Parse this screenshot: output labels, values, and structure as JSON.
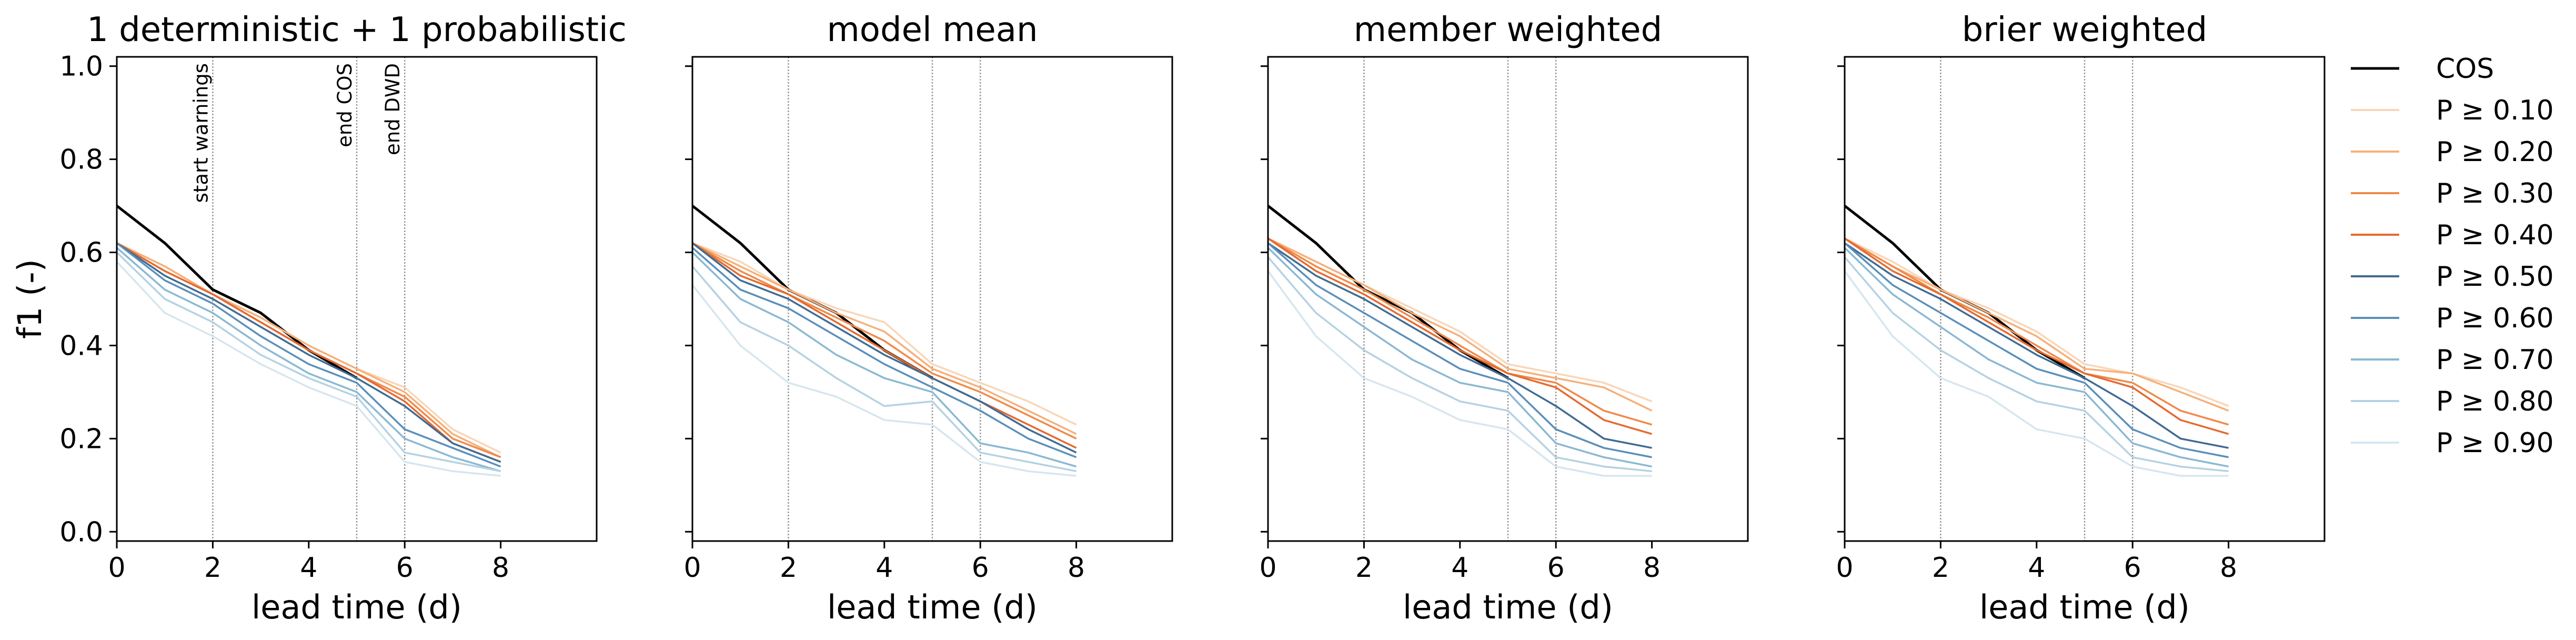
{
  "figure": {
    "ylabel": "f1 (-)",
    "xlabel": "lead time (d)",
    "xticks": [
      "0",
      "2",
      "4",
      "6",
      "8"
    ],
    "yticks": [
      "0.0",
      "0.2",
      "0.4",
      "0.6",
      "0.8",
      "1.0"
    ]
  },
  "legend": {
    "entries": [
      "COS",
      "P ≥ 0.10",
      "P ≥ 0.20",
      "P ≥ 0.30",
      "P ≥ 0.40",
      "P ≥ 0.50",
      "P ≥ 0.60",
      "P ≥ 0.70",
      "P ≥ 0.80",
      "P ≥ 0.90"
    ]
  },
  "vlines": {
    "labels": [
      "start warnings",
      "end COS",
      "end DWD"
    ],
    "x": [
      2,
      5,
      6
    ],
    "color": "#999999"
  },
  "colors": {
    "COS": "#000000",
    "P ≥ 0.10": "#f8d6b8",
    "P ≥ 0.20": "#f5b07a",
    "P ≥ 0.30": "#ef8a4a",
    "P ≥ 0.40": "#e56a2e",
    "P ≥ 0.50": "#3f6b93",
    "P ≥ 0.60": "#5a8fba",
    "P ≥ 0.70": "#8ab8d2",
    "P ≥ 0.80": "#b4d2e2",
    "P ≥ 0.90": "#d6e6ef"
  },
  "chart_data": [
    {
      "type": "line",
      "title": "1 deterministic + 1 probabilistic",
      "xlabel": "lead time (d)",
      "ylabel": "f1 (-)",
      "xlim": [
        0,
        10
      ],
      "ylim": [
        -0.02,
        1.02
      ],
      "x": [
        0,
        1,
        2,
        3,
        4,
        5,
        6,
        7,
        8
      ],
      "series": [
        {
          "name": "COS",
          "values": [
            0.7,
            0.62,
            0.52,
            0.47,
            0.39,
            0.33,
            null,
            null,
            null
          ]
        },
        {
          "name": "P ≥ 0.10",
          "values": [
            0.62,
            0.57,
            0.51,
            0.46,
            0.4,
            0.35,
            0.31,
            0.22,
            0.17
          ]
        },
        {
          "name": "P ≥ 0.20",
          "values": [
            0.62,
            0.57,
            0.51,
            0.46,
            0.4,
            0.35,
            0.3,
            0.21,
            0.16
          ]
        },
        {
          "name": "P ≥ 0.30",
          "values": [
            0.62,
            0.56,
            0.51,
            0.45,
            0.39,
            0.34,
            0.29,
            0.2,
            0.16
          ]
        },
        {
          "name": "P ≥ 0.40",
          "values": [
            0.62,
            0.56,
            0.51,
            0.45,
            0.39,
            0.34,
            0.28,
            0.19,
            0.15
          ]
        },
        {
          "name": "P ≥ 0.50",
          "values": [
            0.62,
            0.55,
            0.5,
            0.44,
            0.38,
            0.33,
            0.27,
            0.19,
            0.15
          ]
        },
        {
          "name": "P ≥ 0.60",
          "values": [
            0.62,
            0.54,
            0.49,
            0.42,
            0.36,
            0.32,
            0.22,
            0.18,
            0.14
          ]
        },
        {
          "name": "P ≥ 0.70",
          "values": [
            0.61,
            0.52,
            0.47,
            0.4,
            0.34,
            0.3,
            0.2,
            0.16,
            0.13
          ]
        },
        {
          "name": "P ≥ 0.80",
          "values": [
            0.6,
            0.5,
            0.45,
            0.38,
            0.33,
            0.29,
            0.17,
            0.15,
            0.13
          ]
        },
        {
          "name": "P ≥ 0.90",
          "values": [
            0.58,
            0.47,
            0.42,
            0.36,
            0.31,
            0.27,
            0.15,
            0.13,
            0.12
          ]
        }
      ]
    },
    {
      "type": "line",
      "title": "model mean",
      "xlabel": "lead time (d)",
      "ylabel": "",
      "xlim": [
        0,
        10
      ],
      "ylim": [
        -0.02,
        1.02
      ],
      "x": [
        0,
        1,
        2,
        3,
        4,
        5,
        6,
        7,
        8
      ],
      "series": [
        {
          "name": "COS",
          "values": [
            0.7,
            0.62,
            0.52,
            0.47,
            0.39,
            0.33,
            null,
            null,
            null
          ]
        },
        {
          "name": "P ≥ 0.10",
          "values": [
            0.62,
            0.58,
            0.52,
            0.48,
            0.45,
            0.36,
            0.32,
            0.28,
            0.23
          ]
        },
        {
          "name": "P ≥ 0.20",
          "values": [
            0.62,
            0.57,
            0.52,
            0.47,
            0.43,
            0.35,
            0.31,
            0.26,
            0.21
          ]
        },
        {
          "name": "P ≥ 0.30",
          "values": [
            0.62,
            0.56,
            0.51,
            0.46,
            0.41,
            0.34,
            0.3,
            0.25,
            0.2
          ]
        },
        {
          "name": "P ≥ 0.40",
          "values": [
            0.62,
            0.55,
            0.51,
            0.45,
            0.39,
            0.33,
            0.28,
            0.23,
            0.18
          ]
        },
        {
          "name": "P ≥ 0.50",
          "values": [
            0.62,
            0.54,
            0.5,
            0.44,
            0.38,
            0.33,
            0.28,
            0.22,
            0.17
          ]
        },
        {
          "name": "P ≥ 0.60",
          "values": [
            0.61,
            0.52,
            0.48,
            0.42,
            0.36,
            0.31,
            0.26,
            0.2,
            0.16
          ]
        },
        {
          "name": "P ≥ 0.70",
          "values": [
            0.6,
            0.5,
            0.45,
            0.38,
            0.33,
            0.3,
            0.19,
            0.17,
            0.14
          ]
        },
        {
          "name": "P ≥ 0.80",
          "values": [
            0.57,
            0.45,
            0.4,
            0.33,
            0.27,
            0.28,
            0.17,
            0.15,
            0.13
          ]
        },
        {
          "name": "P ≥ 0.90",
          "values": [
            0.53,
            0.4,
            0.32,
            0.29,
            0.24,
            0.23,
            0.15,
            0.13,
            0.12
          ]
        }
      ]
    },
    {
      "type": "line",
      "title": "member weighted",
      "xlabel": "lead time (d)",
      "ylabel": "",
      "xlim": [
        0,
        10
      ],
      "ylim": [
        -0.02,
        1.02
      ],
      "x": [
        0,
        1,
        2,
        3,
        4,
        5,
        6,
        7,
        8
      ],
      "series": [
        {
          "name": "COS",
          "values": [
            0.7,
            0.62,
            0.52,
            0.47,
            0.39,
            0.33,
            null,
            null,
            null
          ]
        },
        {
          "name": "P ≥ 0.10",
          "values": [
            0.63,
            0.58,
            0.53,
            0.48,
            0.43,
            0.36,
            0.34,
            0.32,
            0.28
          ]
        },
        {
          "name": "P ≥ 0.20",
          "values": [
            0.63,
            0.58,
            0.53,
            0.47,
            0.42,
            0.35,
            0.33,
            0.31,
            0.26
          ]
        },
        {
          "name": "P ≥ 0.30",
          "values": [
            0.63,
            0.57,
            0.52,
            0.46,
            0.4,
            0.34,
            0.32,
            0.26,
            0.23
          ]
        },
        {
          "name": "P ≥ 0.40",
          "values": [
            0.63,
            0.56,
            0.51,
            0.45,
            0.39,
            0.34,
            0.31,
            0.24,
            0.21
          ]
        },
        {
          "name": "P ≥ 0.50",
          "values": [
            0.62,
            0.55,
            0.5,
            0.44,
            0.38,
            0.33,
            0.27,
            0.2,
            0.18
          ]
        },
        {
          "name": "P ≥ 0.60",
          "values": [
            0.62,
            0.53,
            0.47,
            0.41,
            0.35,
            0.32,
            0.22,
            0.18,
            0.16
          ]
        },
        {
          "name": "P ≥ 0.70",
          "values": [
            0.61,
            0.51,
            0.44,
            0.37,
            0.32,
            0.3,
            0.19,
            0.16,
            0.14
          ]
        },
        {
          "name": "P ≥ 0.80",
          "values": [
            0.59,
            0.47,
            0.39,
            0.33,
            0.28,
            0.26,
            0.16,
            0.14,
            0.13
          ]
        },
        {
          "name": "P ≥ 0.90",
          "values": [
            0.56,
            0.42,
            0.33,
            0.29,
            0.24,
            0.22,
            0.14,
            0.12,
            0.12
          ]
        }
      ]
    },
    {
      "type": "line",
      "title": "brier weighted",
      "xlabel": "lead time (d)",
      "ylabel": "",
      "xlim": [
        0,
        10
      ],
      "ylim": [
        -0.02,
        1.02
      ],
      "x": [
        0,
        1,
        2,
        3,
        4,
        5,
        6,
        7,
        8
      ],
      "series": [
        {
          "name": "COS",
          "values": [
            0.7,
            0.62,
            0.52,
            0.47,
            0.39,
            0.33,
            null,
            null,
            null
          ]
        },
        {
          "name": "P ≥ 0.10",
          "values": [
            0.63,
            0.58,
            0.52,
            0.48,
            0.43,
            0.36,
            0.34,
            0.31,
            0.27
          ]
        },
        {
          "name": "P ≥ 0.20",
          "values": [
            0.63,
            0.57,
            0.52,
            0.47,
            0.42,
            0.35,
            0.34,
            0.3,
            0.26
          ]
        },
        {
          "name": "P ≥ 0.30",
          "values": [
            0.63,
            0.57,
            0.51,
            0.46,
            0.4,
            0.34,
            0.32,
            0.26,
            0.23
          ]
        },
        {
          "name": "P ≥ 0.40",
          "values": [
            0.63,
            0.56,
            0.51,
            0.45,
            0.39,
            0.34,
            0.31,
            0.24,
            0.21
          ]
        },
        {
          "name": "P ≥ 0.50",
          "values": [
            0.62,
            0.55,
            0.5,
            0.44,
            0.38,
            0.33,
            0.27,
            0.2,
            0.18
          ]
        },
        {
          "name": "P ≥ 0.60",
          "values": [
            0.62,
            0.53,
            0.47,
            0.41,
            0.35,
            0.32,
            0.22,
            0.18,
            0.16
          ]
        },
        {
          "name": "P ≥ 0.70",
          "values": [
            0.61,
            0.51,
            0.44,
            0.37,
            0.32,
            0.3,
            0.19,
            0.16,
            0.14
          ]
        },
        {
          "name": "P ≥ 0.80",
          "values": [
            0.59,
            0.47,
            0.39,
            0.33,
            0.28,
            0.26,
            0.16,
            0.14,
            0.13
          ]
        },
        {
          "name": "P ≥ 0.90",
          "values": [
            0.56,
            0.42,
            0.33,
            0.29,
            0.22,
            0.2,
            0.14,
            0.12,
            0.12
          ]
        }
      ]
    }
  ]
}
